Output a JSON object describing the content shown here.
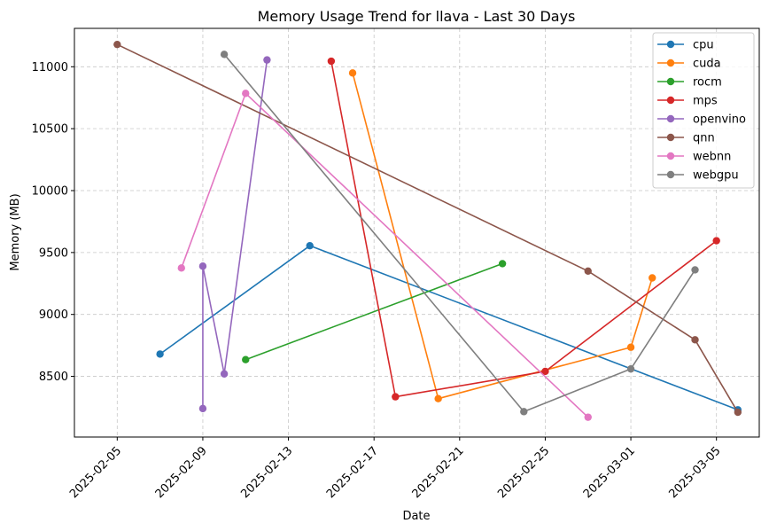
{
  "chart_data": {
    "type": "line",
    "title": "Memory Usage Trend for llava - Last 30 Days",
    "xlabel": "Date",
    "ylabel": "Memory (MB)",
    "x_type": "date",
    "xlim": [
      "2025-02-03",
      "2025-03-07"
    ],
    "ylim": [
      8010,
      11310
    ],
    "x_ticks": [
      "2025-02-05",
      "2025-02-09",
      "2025-02-13",
      "2025-02-17",
      "2025-02-21",
      "2025-02-25",
      "2025-03-01",
      "2025-03-05"
    ],
    "y_ticks": [
      8500,
      9000,
      9500,
      10000,
      10500,
      11000
    ],
    "grid": true,
    "legend_position": "top-right",
    "series": [
      {
        "name": "cpu",
        "color": "#1f77b4",
        "points": [
          {
            "x": "2025-02-07",
            "y": 8680
          },
          {
            "x": "2025-02-14",
            "y": 9555
          },
          {
            "x": "2025-03-06",
            "y": 8230
          }
        ]
      },
      {
        "name": "cuda",
        "color": "#ff7f0e",
        "points": [
          {
            "x": "2025-02-16",
            "y": 10950
          },
          {
            "x": "2025-02-20",
            "y": 8320
          },
          {
            "x": "2025-03-01",
            "y": 8735
          },
          {
            "x": "2025-03-02",
            "y": 9295
          }
        ]
      },
      {
        "name": "rocm",
        "color": "#2ca02c",
        "points": [
          {
            "x": "2025-02-11",
            "y": 8635
          },
          {
            "x": "2025-02-23",
            "y": 9410
          }
        ]
      },
      {
        "name": "mps",
        "color": "#d62728",
        "points": [
          {
            "x": "2025-02-15",
            "y": 11045
          },
          {
            "x": "2025-02-18",
            "y": 8335
          },
          {
            "x": "2025-02-25",
            "y": 8540
          },
          {
            "x": "2025-03-05",
            "y": 9595
          }
        ]
      },
      {
        "name": "openvino",
        "color": "#9467bd",
        "points": [
          {
            "x": "2025-02-09",
            "y": 8240
          },
          {
            "x": "2025-02-09",
            "y": 9390
          },
          {
            "x": "2025-02-10",
            "y": 8520
          },
          {
            "x": "2025-02-12",
            "y": 11055
          }
        ]
      },
      {
        "name": "qnn",
        "color": "#8c564b",
        "points": [
          {
            "x": "2025-02-05",
            "y": 11180
          },
          {
            "x": "2025-02-27",
            "y": 9350
          },
          {
            "x": "2025-03-04",
            "y": 8795
          },
          {
            "x": "2025-03-06",
            "y": 8210
          }
        ]
      },
      {
        "name": "webnn",
        "color": "#e377c2",
        "points": [
          {
            "x": "2025-02-08",
            "y": 9375
          },
          {
            "x": "2025-02-11",
            "y": 10785
          },
          {
            "x": "2025-02-27",
            "y": 8170
          }
        ]
      },
      {
        "name": "webgpu",
        "color": "#7f7f7f",
        "points": [
          {
            "x": "2025-02-10",
            "y": 11100
          },
          {
            "x": "2025-02-24",
            "y": 8215
          },
          {
            "x": "2025-02-29",
            "y": 8560
          },
          {
            "x": "2025-03-04",
            "y": 9360
          }
        ]
      }
    ]
  }
}
